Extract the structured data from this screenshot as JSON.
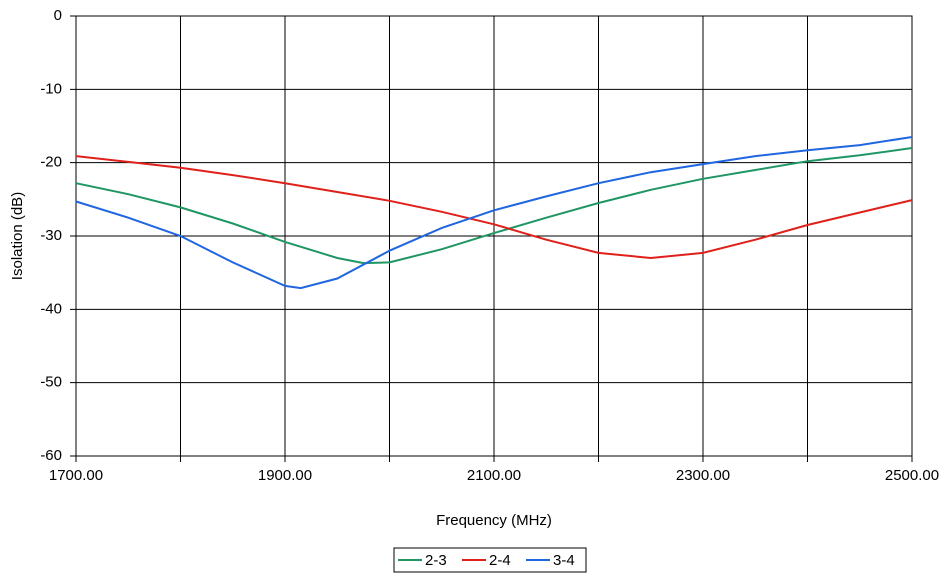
{
  "chart_data": {
    "type": "line",
    "x_label": "Frequency (MHz)",
    "y_label": "Isolation (dB)",
    "xlim": [
      1700,
      2500
    ],
    "xticks": [
      {
        "value": 1700,
        "label": "1700.00"
      },
      {
        "value": 1800,
        "label": null
      },
      {
        "value": 1900,
        "label": "1900.00"
      },
      {
        "value": 2000,
        "label": null
      },
      {
        "value": 2100,
        "label": "2100.00"
      },
      {
        "value": 2200,
        "label": null
      },
      {
        "value": 2300,
        "label": "2300.00"
      },
      {
        "value": 2400,
        "label": null
      },
      {
        "value": 2500,
        "label": "2500.00"
      }
    ],
    "ylim": [
      -60,
      0
    ],
    "yticks": [
      -60,
      -50,
      -40,
      -30,
      -20,
      -10,
      0
    ],
    "grid": true,
    "series": [
      {
        "name": "2-3",
        "color": "#1f9663",
        "x": [
          1700,
          1750,
          1800,
          1850,
          1900,
          1950,
          1975,
          2000,
          2050,
          2100,
          2150,
          2200,
          2250,
          2300,
          2350,
          2400,
          2450,
          2500
        ],
        "values": [
          -22.8,
          -24.3,
          -26.1,
          -28.3,
          -30.8,
          -33.0,
          -33.7,
          -33.6,
          -31.8,
          -29.6,
          -27.5,
          -25.5,
          -23.7,
          -22.2,
          -21.0,
          -19.8,
          -19.0,
          -18.0
        ]
      },
      {
        "name": "2-4",
        "color": "#e0201a",
        "x": [
          1700,
          1750,
          1800,
          1850,
          1900,
          1950,
          2000,
          2050,
          2100,
          2150,
          2200,
          2250,
          2300,
          2350,
          2400,
          2450,
          2500
        ],
        "values": [
          -19.1,
          -19.9,
          -20.7,
          -21.7,
          -22.8,
          -24.0,
          -25.2,
          -26.7,
          -28.4,
          -30.5,
          -32.3,
          -33.0,
          -32.3,
          -30.5,
          -28.5,
          -26.8,
          -25.1
        ]
      },
      {
        "name": "3-4",
        "color": "#1f66e0",
        "x": [
          1700,
          1750,
          1800,
          1850,
          1900,
          1915,
          1950,
          2000,
          2050,
          2100,
          2150,
          2200,
          2250,
          2300,
          2350,
          2400,
          2450,
          2500
        ],
        "values": [
          -25.3,
          -27.5,
          -30.0,
          -33.6,
          -36.8,
          -37.1,
          -35.8,
          -32.0,
          -28.9,
          -26.5,
          -24.6,
          -22.8,
          -21.3,
          -20.2,
          -19.1,
          -18.3,
          -17.6,
          -16.5
        ]
      }
    ]
  }
}
